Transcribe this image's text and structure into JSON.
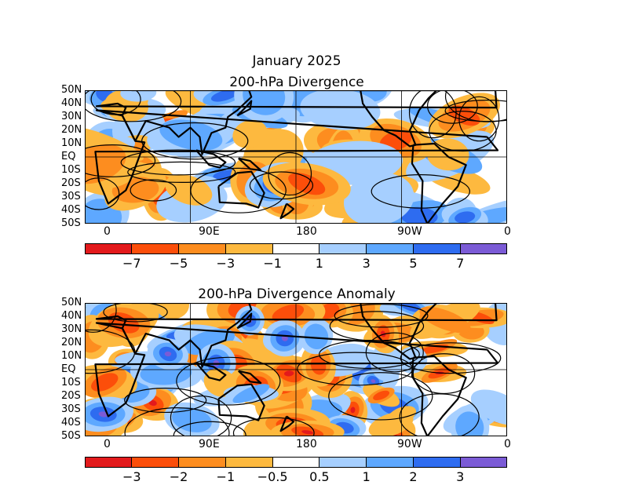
{
  "main_title": "January 2025",
  "panels": [
    {
      "title": "200-hPa Divergence",
      "lat_ticks": [
        "50N",
        "40N",
        "30N",
        "20N",
        "10N",
        "EQ",
        "10S",
        "20S",
        "30S",
        "40S",
        "50S"
      ],
      "lon_ticks": [
        "0",
        "90E",
        "180",
        "90W",
        "0"
      ],
      "colorbar_labels": [
        "−7",
        "−5",
        "−3",
        "−1",
        "1",
        "3",
        "5",
        "7"
      ]
    },
    {
      "title": "200-hPa Divergence Anomaly",
      "lat_ticks": [
        "50N",
        "40N",
        "30N",
        "20N",
        "10N",
        "EQ",
        "10S",
        "20S",
        "30S",
        "40S",
        "50S"
      ],
      "lon_ticks": [
        "0",
        "90E",
        "180",
        "90W",
        "0"
      ],
      "colorbar_labels": [
        "−3",
        "−2",
        "−1",
        "−0.5",
        "0.5",
        "1",
        "2",
        "3"
      ]
    }
  ],
  "colors": [
    "#e31a1c",
    "#fc4e0a",
    "#fd8d1f",
    "#fdb93f",
    "#ffffff",
    "#a6cfff",
    "#5ea8ff",
    "#2e6cf0",
    "#7b5bd6"
  ],
  "chart_data": [
    {
      "type": "heatmap",
      "title": "200-hPa Divergence",
      "xlabel": "",
      "ylabel": "",
      "x_ticks": [
        "0",
        "90E",
        "180",
        "90W",
        "0"
      ],
      "y_ticks": [
        "50N",
        "40N",
        "30N",
        "20N",
        "10N",
        "EQ",
        "10S",
        "20S",
        "30S",
        "40S",
        "50S"
      ],
      "colorbar": {
        "levels": [
          -7,
          -5,
          -3,
          -1,
          1,
          3,
          5,
          7
        ]
      }
    },
    {
      "type": "heatmap",
      "title": "200-hPa Divergence Anomaly",
      "xlabel": "",
      "ylabel": "",
      "x_ticks": [
        "0",
        "90E",
        "180",
        "90W",
        "0"
      ],
      "y_ticks": [
        "50N",
        "40N",
        "30N",
        "20N",
        "10N",
        "EQ",
        "10S",
        "20S",
        "30S",
        "40S",
        "50S"
      ],
      "colorbar": {
        "levels": [
          -3,
          -2,
          -1,
          -0.5,
          0.5,
          1,
          2,
          3
        ]
      }
    }
  ]
}
